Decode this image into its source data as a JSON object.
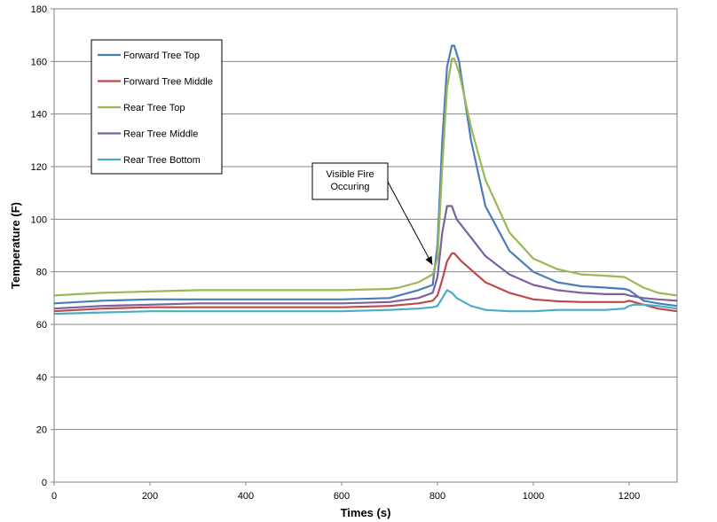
{
  "chart_data": {
    "type": "line",
    "xlabel": "Times (s)",
    "ylabel": "Temperature (F)",
    "xlim": [
      0,
      1300
    ],
    "ylim": [
      0,
      180
    ],
    "xticks": [
      0,
      200,
      400,
      600,
      800,
      1000,
      1200
    ],
    "yticks": [
      0,
      20,
      40,
      60,
      80,
      100,
      120,
      140,
      160,
      180
    ],
    "grid": "horizontal",
    "legend_position": "top-left",
    "annotation": {
      "lines": [
        "Visible Fire",
        "Occuring"
      ],
      "points_to": {
        "x": 793,
        "y": 81
      }
    },
    "series": [
      {
        "name": "Forward Tree Top",
        "color": "#4a7ebb",
        "x": [
          0,
          100,
          200,
          300,
          400,
          500,
          600,
          700,
          760,
          790,
          800,
          810,
          820,
          830,
          835,
          845,
          870,
          900,
          950,
          1000,
          1050,
          1100,
          1150,
          1190,
          1200,
          1230,
          1260,
          1300
        ],
        "y": [
          68,
          69,
          69.5,
          69.5,
          69.5,
          69.5,
          69.5,
          70,
          73,
          75,
          90,
          130,
          158,
          166,
          166,
          160,
          130,
          105,
          88,
          80,
          76,
          74.5,
          74,
          73.5,
          73,
          69,
          68,
          67
        ]
      },
      {
        "name": "Forward Tree Middle",
        "color": "#be4b48",
        "x": [
          0,
          100,
          200,
          300,
          400,
          500,
          600,
          700,
          760,
          790,
          800,
          810,
          820,
          830,
          835,
          850,
          900,
          950,
          1000,
          1050,
          1100,
          1150,
          1190,
          1200,
          1220,
          1260,
          1300
        ],
        "y": [
          65,
          66,
          66.5,
          66.5,
          66.5,
          66.5,
          66.5,
          67,
          68,
          69,
          71,
          77,
          84,
          87,
          87,
          84,
          76,
          72,
          69.5,
          68.8,
          68.5,
          68.5,
          68.5,
          69,
          68,
          66,
          65
        ]
      },
      {
        "name": "Rear Tree Top",
        "color": "#98b954",
        "x": [
          0,
          100,
          200,
          300,
          400,
          500,
          600,
          700,
          720,
          760,
          790,
          800,
          810,
          820,
          830,
          835,
          845,
          870,
          900,
          950,
          1000,
          1050,
          1100,
          1150,
          1190,
          1200,
          1230,
          1260,
          1300
        ],
        "y": [
          71,
          72,
          72.5,
          73,
          73,
          73,
          73,
          73.5,
          74,
          76,
          79,
          85,
          120,
          150,
          161,
          161,
          156,
          135,
          115,
          95,
          85,
          81,
          79,
          78.5,
          78,
          77,
          74,
          72,
          71
        ]
      },
      {
        "name": "Rear Tree Middle",
        "color": "#7d60a0",
        "x": [
          0,
          100,
          200,
          300,
          400,
          500,
          600,
          700,
          760,
          790,
          800,
          810,
          820,
          830,
          840,
          870,
          900,
          950,
          1000,
          1050,
          1100,
          1150,
          1190,
          1200,
          1230,
          1260,
          1300
        ],
        "y": [
          66,
          67,
          67.5,
          68,
          68,
          68,
          68,
          68.5,
          70,
          72,
          78,
          95,
          105,
          105,
          100,
          93,
          86,
          79,
          75,
          73,
          72,
          71.5,
          71.5,
          71,
          70,
          69.5,
          69
        ]
      },
      {
        "name": "Rear Tree Bottom",
        "color": "#4bacc6",
        "x": [
          0,
          100,
          200,
          300,
          400,
          500,
          600,
          700,
          760,
          790,
          800,
          810,
          820,
          830,
          840,
          870,
          900,
          950,
          1000,
          1050,
          1100,
          1150,
          1190,
          1200,
          1210,
          1230,
          1260,
          1300
        ],
        "y": [
          64,
          64.5,
          65,
          65,
          65,
          65,
          65,
          65.5,
          66,
          66.5,
          67,
          70,
          73,
          72,
          70,
          67,
          65.5,
          65,
          65,
          65.5,
          65.5,
          65.5,
          66,
          67,
          67.5,
          67.5,
          67,
          66
        ]
      }
    ]
  }
}
